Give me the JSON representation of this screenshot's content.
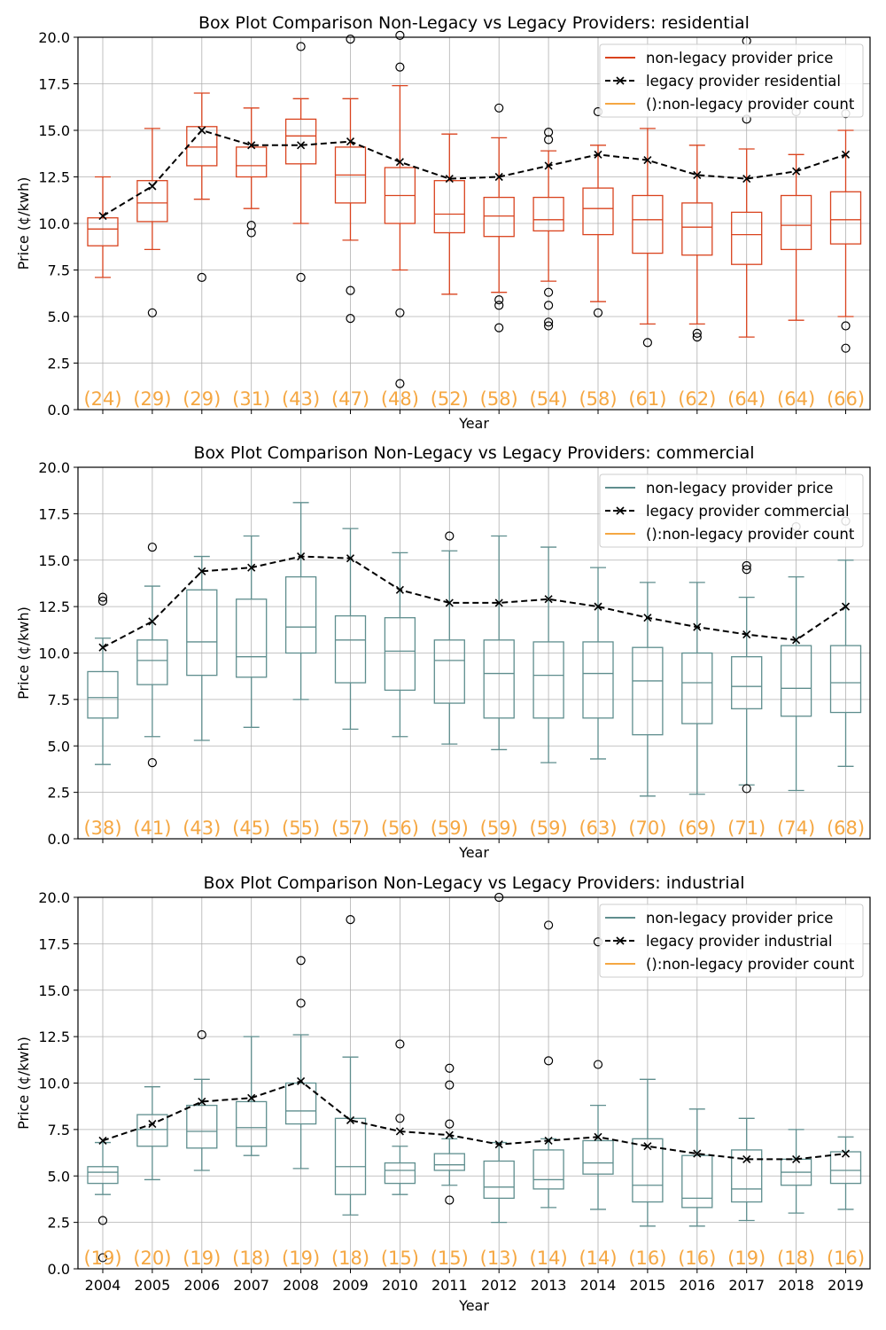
{
  "chart_data": [
    {
      "type": "box",
      "title": "Box Plot Comparison Non-Legacy vs Legacy Providers: residential",
      "xlabel": "Year",
      "ylabel": "Price (¢/kwh)",
      "ylim": [
        0,
        20
      ],
      "yticks": [
        "0.0",
        "2.5",
        "5.0",
        "7.5",
        "10.0",
        "12.5",
        "15.0",
        "17.5",
        "20.0"
      ],
      "categories": [
        "2004",
        "2005",
        "2006",
        "2007",
        "2008",
        "2009",
        "2010",
        "2011",
        "2012",
        "2013",
        "2014",
        "2015",
        "2016",
        "2017",
        "2018",
        "2019"
      ],
      "show_xtick_labels": false,
      "grid": true,
      "legend_position": "top-right",
      "box_color": "#d9431e",
      "legend": [
        "non-legacy provider price",
        "legacy provider residential",
        "():non-legacy provider count"
      ],
      "boxes": [
        {
          "whislo": 7.1,
          "q1": 8.8,
          "med": 9.7,
          "q3": 10.3,
          "whishi": 12.5,
          "fliers": []
        },
        {
          "whislo": 8.6,
          "q1": 10.1,
          "med": 11.1,
          "q3": 12.3,
          "whishi": 15.1,
          "fliers": [
            5.2
          ]
        },
        {
          "whislo": 11.3,
          "q1": 13.1,
          "med": 14.1,
          "q3": 15.2,
          "whishi": 17.0,
          "fliers": [
            7.1
          ]
        },
        {
          "whislo": 10.8,
          "q1": 12.5,
          "med": 13.1,
          "q3": 14.1,
          "whishi": 16.2,
          "fliers": [
            9.9,
            9.5
          ]
        },
        {
          "whislo": 10.0,
          "q1": 13.2,
          "med": 14.7,
          "q3": 15.6,
          "whishi": 16.7,
          "fliers": [
            19.5,
            7.1
          ]
        },
        {
          "whislo": 9.1,
          "q1": 11.1,
          "med": 12.6,
          "q3": 14.1,
          "whishi": 16.7,
          "fliers": [
            19.9,
            6.4,
            4.9
          ]
        },
        {
          "whislo": 7.5,
          "q1": 10.0,
          "med": 11.5,
          "q3": 13.0,
          "whishi": 17.4,
          "fliers": [
            20.1,
            18.4,
            5.2,
            1.4
          ]
        },
        {
          "whislo": 6.2,
          "q1": 9.5,
          "med": 10.5,
          "q3": 12.3,
          "whishi": 14.8,
          "fliers": []
        },
        {
          "whislo": 6.3,
          "q1": 9.3,
          "med": 10.4,
          "q3": 11.4,
          "whishi": 14.6,
          "fliers": [
            16.2,
            5.9,
            5.6,
            4.4
          ]
        },
        {
          "whislo": 6.9,
          "q1": 9.6,
          "med": 10.2,
          "q3": 11.4,
          "whishi": 13.9,
          "fliers": [
            14.9,
            14.5,
            6.3,
            5.6,
            4.7,
            4.5
          ]
        },
        {
          "whislo": 5.8,
          "q1": 9.4,
          "med": 10.8,
          "q3": 11.9,
          "whishi": 14.2,
          "fliers": [
            16.0,
            5.2
          ]
        },
        {
          "whislo": 4.6,
          "q1": 8.4,
          "med": 10.2,
          "q3": 11.5,
          "whishi": 15.1,
          "fliers": [
            3.6
          ]
        },
        {
          "whislo": 4.6,
          "q1": 8.3,
          "med": 9.8,
          "q3": 11.1,
          "whishi": 14.2,
          "fliers": [
            4.1,
            3.9
          ]
        },
        {
          "whislo": 3.9,
          "q1": 7.8,
          "med": 9.4,
          "q3": 10.6,
          "whishi": 14.0,
          "fliers": [
            19.8,
            15.6
          ]
        },
        {
          "whislo": 4.8,
          "q1": 8.6,
          "med": 9.9,
          "q3": 11.5,
          "whishi": 13.7,
          "fliers": [
            16.0
          ]
        },
        {
          "whislo": 5.0,
          "q1": 8.9,
          "med": 10.2,
          "q3": 11.7,
          "whishi": 15.0,
          "fliers": [
            15.9,
            4.5,
            3.3
          ]
        }
      ],
      "legacy_series": {
        "name": "legacy provider residential",
        "values": [
          10.4,
          12.0,
          15.0,
          14.2,
          14.2,
          14.4,
          13.3,
          12.4,
          12.5,
          13.1,
          13.7,
          13.4,
          12.6,
          12.4,
          12.8,
          13.7
        ]
      },
      "counts": [
        "(24)",
        "(29)",
        "(29)",
        "(31)",
        "(43)",
        "(47)",
        "(48)",
        "(52)",
        "(58)",
        "(54)",
        "(58)",
        "(61)",
        "(62)",
        "(64)",
        "(64)",
        "(66)"
      ]
    },
    {
      "type": "box",
      "title": "Box Plot Comparison Non-Legacy vs Legacy Providers: commercial",
      "xlabel": "Year",
      "ylabel": "Price (¢/kwh)",
      "ylim": [
        0,
        20
      ],
      "yticks": [
        "0.0",
        "2.5",
        "5.0",
        "7.5",
        "10.0",
        "12.5",
        "15.0",
        "17.5",
        "20.0"
      ],
      "categories": [
        "2004",
        "2005",
        "2006",
        "2007",
        "2008",
        "2009",
        "2010",
        "2011",
        "2012",
        "2013",
        "2014",
        "2015",
        "2016",
        "2017",
        "2018",
        "2019"
      ],
      "show_xtick_labels": false,
      "grid": true,
      "legend_position": "top-right",
      "box_color": "#5f8e8e",
      "legend": [
        "non-legacy provider price",
        "legacy provider commercial",
        "():non-legacy provider count"
      ],
      "boxes": [
        {
          "whislo": 4.0,
          "q1": 6.5,
          "med": 7.6,
          "q3": 9.0,
          "whishi": 10.8,
          "fliers": [
            13.0,
            12.8
          ]
        },
        {
          "whislo": 5.5,
          "q1": 8.3,
          "med": 9.6,
          "q3": 10.7,
          "whishi": 13.6,
          "fliers": [
            15.7,
            4.1
          ]
        },
        {
          "whislo": 5.3,
          "q1": 8.8,
          "med": 10.6,
          "q3": 13.4,
          "whishi": 15.2,
          "fliers": []
        },
        {
          "whislo": 6.0,
          "q1": 8.7,
          "med": 9.8,
          "q3": 12.9,
          "whishi": 16.3,
          "fliers": []
        },
        {
          "whislo": 7.5,
          "q1": 10.0,
          "med": 11.4,
          "q3": 14.1,
          "whishi": 18.1,
          "fliers": []
        },
        {
          "whislo": 5.9,
          "q1": 8.4,
          "med": 10.7,
          "q3": 12.0,
          "whishi": 16.7,
          "fliers": []
        },
        {
          "whislo": 5.5,
          "q1": 8.0,
          "med": 10.1,
          "q3": 11.9,
          "whishi": 15.4,
          "fliers": []
        },
        {
          "whislo": 5.1,
          "q1": 7.3,
          "med": 9.6,
          "q3": 10.7,
          "whishi": 15.5,
          "fliers": [
            16.3
          ]
        },
        {
          "whislo": 4.8,
          "q1": 6.5,
          "med": 8.9,
          "q3": 10.7,
          "whishi": 16.3,
          "fliers": []
        },
        {
          "whislo": 4.1,
          "q1": 6.5,
          "med": 8.8,
          "q3": 10.6,
          "whishi": 15.7,
          "fliers": []
        },
        {
          "whislo": 4.3,
          "q1": 6.5,
          "med": 8.9,
          "q3": 10.6,
          "whishi": 14.6,
          "fliers": []
        },
        {
          "whislo": 2.3,
          "q1": 5.6,
          "med": 8.5,
          "q3": 10.3,
          "whishi": 13.8,
          "fliers": []
        },
        {
          "whislo": 2.4,
          "q1": 6.2,
          "med": 8.4,
          "q3": 10.0,
          "whishi": 13.8,
          "fliers": []
        },
        {
          "whislo": 2.9,
          "q1": 7.0,
          "med": 8.2,
          "q3": 9.8,
          "whishi": 13.0,
          "fliers": [
            14.7,
            14.5,
            2.7
          ]
        },
        {
          "whislo": 2.6,
          "q1": 6.6,
          "med": 8.1,
          "q3": 10.4,
          "whishi": 14.1,
          "fliers": [
            16.8
          ]
        },
        {
          "whislo": 3.9,
          "q1": 6.8,
          "med": 8.4,
          "q3": 10.4,
          "whishi": 15.0,
          "fliers": [
            17.1
          ]
        }
      ],
      "legacy_series": {
        "name": "legacy provider commercial",
        "values": [
          10.3,
          11.7,
          14.4,
          14.6,
          15.2,
          15.1,
          13.4,
          12.7,
          12.7,
          12.9,
          12.5,
          11.9,
          11.4,
          11.0,
          10.7,
          12.5
        ]
      },
      "counts": [
        "(38)",
        "(41)",
        "(43)",
        "(45)",
        "(55)",
        "(57)",
        "(56)",
        "(59)",
        "(59)",
        "(59)",
        "(63)",
        "(70)",
        "(69)",
        "(71)",
        "(74)",
        "(68)"
      ]
    },
    {
      "type": "box",
      "title": "Box Plot Comparison Non-Legacy vs Legacy Providers: industrial",
      "xlabel": "Year",
      "ylabel": "Price (¢/kwh)",
      "ylim": [
        0,
        20
      ],
      "yticks": [
        "0.0",
        "2.5",
        "5.0",
        "7.5",
        "10.0",
        "12.5",
        "15.0",
        "17.5",
        "20.0"
      ],
      "categories": [
        "2004",
        "2005",
        "2006",
        "2007",
        "2008",
        "2009",
        "2010",
        "2011",
        "2012",
        "2013",
        "2014",
        "2015",
        "2016",
        "2017",
        "2018",
        "2019"
      ],
      "show_xtick_labels": true,
      "grid": true,
      "legend_position": "top-right",
      "box_color": "#5f8e8e",
      "legend": [
        "non-legacy provider price",
        "legacy provider industrial",
        "():non-legacy provider count"
      ],
      "boxes": [
        {
          "whislo": 4.0,
          "q1": 4.6,
          "med": 5.2,
          "q3": 5.5,
          "whishi": 6.8,
          "fliers": [
            2.6,
            0.6
          ]
        },
        {
          "whislo": 4.8,
          "q1": 6.6,
          "med": 7.5,
          "q3": 8.3,
          "whishi": 9.8,
          "fliers": []
        },
        {
          "whislo": 5.3,
          "q1": 6.5,
          "med": 7.4,
          "q3": 8.8,
          "whishi": 10.2,
          "fliers": [
            12.6
          ]
        },
        {
          "whislo": 6.1,
          "q1": 6.6,
          "med": 7.6,
          "q3": 9.0,
          "whishi": 12.5,
          "fliers": []
        },
        {
          "whislo": 5.4,
          "q1": 7.8,
          "med": 8.5,
          "q3": 10.0,
          "whishi": 12.6,
          "fliers": [
            16.6,
            14.3
          ]
        },
        {
          "whislo": 2.9,
          "q1": 4.0,
          "med": 5.5,
          "q3": 8.1,
          "whishi": 11.4,
          "fliers": [
            18.8
          ]
        },
        {
          "whislo": 4.0,
          "q1": 4.6,
          "med": 5.3,
          "q3": 5.7,
          "whishi": 6.6,
          "fliers": [
            12.1,
            8.1
          ]
        },
        {
          "whislo": 4.5,
          "q1": 5.3,
          "med": 5.6,
          "q3": 6.2,
          "whishi": 7.0,
          "fliers": [
            10.8,
            9.9,
            7.8,
            3.7
          ]
        },
        {
          "whislo": 2.5,
          "q1": 3.8,
          "med": 4.4,
          "q3": 5.8,
          "whishi": 6.8,
          "fliers": [
            20.0
          ]
        },
        {
          "whislo": 3.3,
          "q1": 4.3,
          "med": 4.8,
          "q3": 6.4,
          "whishi": 7.0,
          "fliers": [
            18.5,
            11.2
          ]
        },
        {
          "whislo": 3.2,
          "q1": 5.1,
          "med": 5.7,
          "q3": 6.9,
          "whishi": 8.8,
          "fliers": [
            17.6,
            11.0
          ]
        },
        {
          "whislo": 2.3,
          "q1": 3.6,
          "med": 4.5,
          "q3": 7.0,
          "whishi": 10.2,
          "fliers": []
        },
        {
          "whislo": 2.3,
          "q1": 3.3,
          "med": 3.8,
          "q3": 6.1,
          "whishi": 8.6,
          "fliers": []
        },
        {
          "whislo": 2.6,
          "q1": 3.6,
          "med": 4.3,
          "q3": 6.4,
          "whishi": 8.1,
          "fliers": []
        },
        {
          "whislo": 3.0,
          "q1": 4.5,
          "med": 5.2,
          "q3": 5.9,
          "whishi": 7.5,
          "fliers": []
        },
        {
          "whislo": 3.2,
          "q1": 4.6,
          "med": 5.3,
          "q3": 6.3,
          "whishi": 7.1,
          "fliers": []
        }
      ],
      "legacy_series": {
        "name": "legacy provider industrial",
        "values": [
          6.9,
          7.8,
          9.0,
          9.2,
          10.1,
          8.0,
          7.4,
          7.2,
          6.7,
          6.9,
          7.1,
          6.6,
          6.2,
          5.9,
          5.9,
          6.2
        ]
      },
      "counts": [
        "(19)",
        "(20)",
        "(19)",
        "(18)",
        "(19)",
        "(18)",
        "(15)",
        "(15)",
        "(13)",
        "(14)",
        "(14)",
        "(16)",
        "(16)",
        "(19)",
        "(18)",
        "(16)"
      ]
    }
  ],
  "colors": {
    "legacy_line": "#000000",
    "count_label": "#f5a742",
    "grid": "#b0b0b0",
    "flier": "#000000"
  }
}
